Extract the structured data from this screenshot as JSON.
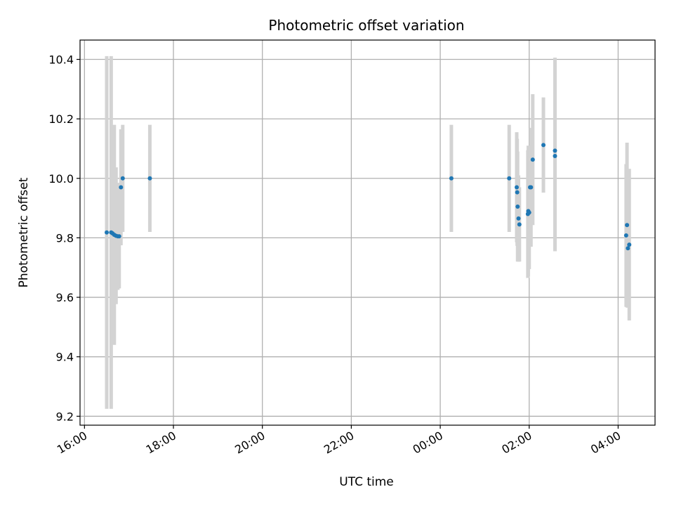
{
  "chart_data": {
    "type": "scatter",
    "title": "Photometric offset variation",
    "xlabel": "UTC time",
    "ylabel": "Photometric offset",
    "x_unit": "hours",
    "x_ticks": [
      {
        "value": 16,
        "label": "16:00"
      },
      {
        "value": 18,
        "label": "18:00"
      },
      {
        "value": 20,
        "label": "20:00"
      },
      {
        "value": 22,
        "label": "22:00"
      },
      {
        "value": 24,
        "label": "00:00"
      },
      {
        "value": 26,
        "label": "02:00"
      },
      {
        "value": 28,
        "label": "04:00"
      }
    ],
    "y_ticks": [
      {
        "value": 9.2,
        "label": "9.2"
      },
      {
        "value": 9.4,
        "label": "9.4"
      },
      {
        "value": 9.6,
        "label": "9.6"
      },
      {
        "value": 9.8,
        "label": "9.8"
      },
      {
        "value": 10.0,
        "label": "10.0"
      },
      {
        "value": 10.2,
        "label": "10.2"
      },
      {
        "value": 10.4,
        "label": "10.4"
      }
    ],
    "xlim": [
      15.9,
      28.83
    ],
    "ylim": [
      9.17,
      10.465
    ],
    "grid": true,
    "point_color": "#1f77b4",
    "errorbar_color": "#d3d3d3",
    "points": [
      {
        "x": 16.5,
        "y": 9.818,
        "err": 0.593
      },
      {
        "x": 16.6,
        "y": 9.818,
        "err": 0.593
      },
      {
        "x": 16.63,
        "y": 9.815,
        "err": 0.3
      },
      {
        "x": 16.67,
        "y": 9.81,
        "err": 0.37
      },
      {
        "x": 16.71,
        "y": 9.807,
        "err": 0.23
      },
      {
        "x": 16.75,
        "y": 9.805,
        "err": 0.18
      },
      {
        "x": 16.78,
        "y": 9.805,
        "err": 0.175
      },
      {
        "x": 16.82,
        "y": 9.97,
        "err": 0.195
      },
      {
        "x": 16.86,
        "y": 10.0,
        "err": 0.18
      },
      {
        "x": 17.47,
        "y": 10.0,
        "err": 0.18
      },
      {
        "x": 24.25,
        "y": 10.0,
        "err": 0.18
      },
      {
        "x": 25.55,
        "y": 10.0,
        "err": 0.18
      },
      {
        "x": 25.72,
        "y": 9.97,
        "err": 0.185
      },
      {
        "x": 25.73,
        "y": 9.953,
        "err": 0.18
      },
      {
        "x": 25.74,
        "y": 9.905,
        "err": 0.185
      },
      {
        "x": 25.76,
        "y": 9.865,
        "err": 0.145
      },
      {
        "x": 25.78,
        "y": 9.845,
        "err": 0.125
      },
      {
        "x": 25.97,
        "y": 9.88,
        "err": 0.215
      },
      {
        "x": 25.98,
        "y": 9.89,
        "err": 0.22
      },
      {
        "x": 26.0,
        "y": 9.885,
        "err": 0.19
      },
      {
        "x": 26.02,
        "y": 9.97,
        "err": 0.14
      },
      {
        "x": 26.04,
        "y": 9.97,
        "err": 0.2
      },
      {
        "x": 26.08,
        "y": 10.063,
        "err": 0.22
      },
      {
        "x": 26.32,
        "y": 10.112,
        "err": 0.16
      },
      {
        "x": 26.58,
        "y": 10.093,
        "err": 0.313
      },
      {
        "x": 26.58,
        "y": 10.075,
        "err": 0.32
      },
      {
        "x": 28.18,
        "y": 9.808,
        "err": 0.24
      },
      {
        "x": 28.2,
        "y": 9.843,
        "err": 0.277
      },
      {
        "x": 28.22,
        "y": 9.765,
        "err": 0.2
      },
      {
        "x": 28.25,
        "y": 9.777,
        "err": 0.255
      }
    ]
  }
}
